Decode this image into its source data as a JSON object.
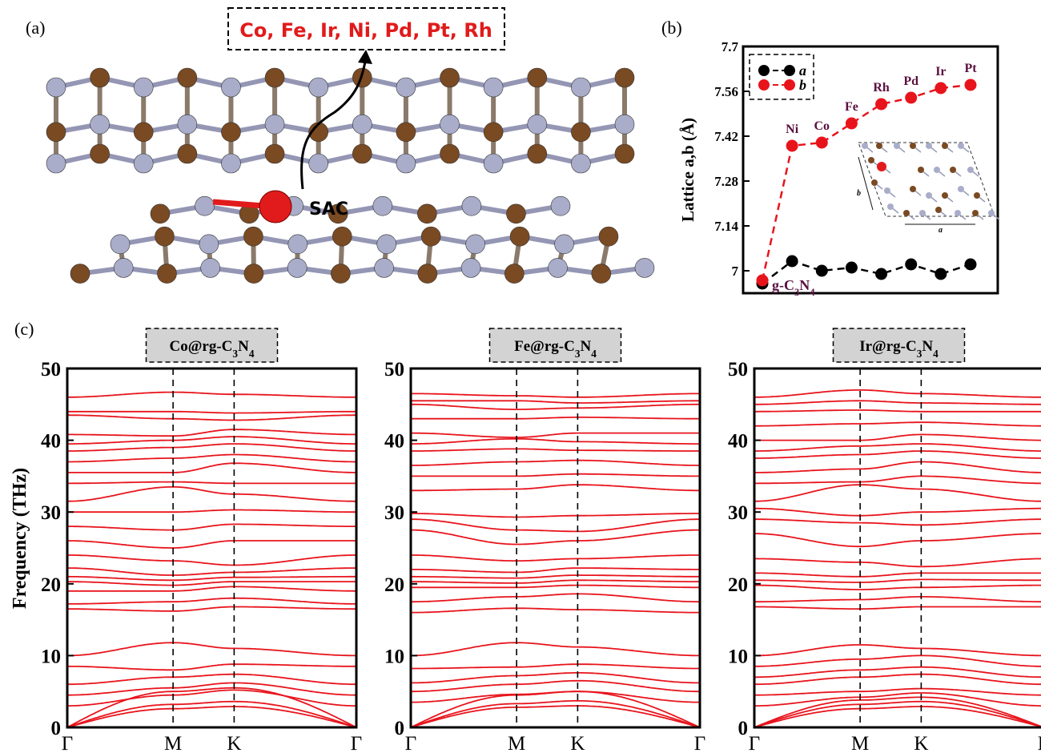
{
  "panels": {
    "a": {
      "label": "(a)",
      "elements_box": "Co, Fe, Ir, Ni, Pd, Pt, Rh",
      "sac_label": "SAC"
    },
    "b": {
      "label": "(b)"
    },
    "c": {
      "label": "(c)"
    }
  },
  "colors": {
    "carbon": "#7a4a22",
    "nitrogen": "#a9adca",
    "metal": "#e11b1b",
    "phonon_line": "#e8141c",
    "series_a": "#000000",
    "series_b": "#e8141c",
    "annotation_text": "#5a1040",
    "title_box_fill": "#d3d3d3"
  },
  "chart_data": [
    {
      "type": "line",
      "panel": "b",
      "ylabel": "Lattice  a,b (Å)",
      "ylim": [
        6.93,
        7.7
      ],
      "yticks": [
        7,
        7.14,
        7.28,
        7.42,
        7.56,
        7.7
      ],
      "x": [
        0,
        1,
        2,
        3,
        4,
        5,
        6,
        7
      ],
      "point_labels": [
        "g-C3N4",
        "Ni",
        "Co",
        "Fe",
        "Rh",
        "Pd",
        "Ir",
        "Pt"
      ],
      "series": [
        {
          "name": "a",
          "values": [
            6.96,
            7.03,
            7.0,
            7.01,
            6.99,
            7.02,
            6.99,
            7.02
          ]
        },
        {
          "name": "b",
          "values": [
            6.97,
            7.39,
            7.4,
            7.46,
            7.52,
            7.54,
            7.57,
            7.58
          ]
        }
      ],
      "legend_placement": "top-left",
      "inset_axis_labels": {
        "a": "a",
        "b": "b"
      }
    },
    {
      "type": "line",
      "panel": "c",
      "title": "Co@rg-C3N4",
      "ylabel": "Frequency (THz)",
      "ylim": [
        0,
        50
      ],
      "yticks": [
        0,
        10,
        20,
        30,
        40,
        50
      ],
      "kpath_labels": [
        "Γ",
        "M",
        "K",
        "Γ"
      ],
      "kpath_positions": [
        0,
        1,
        1.577,
        2.732
      ],
      "bands_gamma": [
        0.0,
        0.0,
        0.0,
        3.0,
        4.5,
        6.0,
        8.5,
        10.0,
        16.5,
        17.2,
        19.0,
        20.3,
        21.0,
        22.2,
        24.0,
        26.0,
        28.0,
        30.0,
        31.5,
        34.0,
        35.5,
        37.0,
        38.5,
        39.5,
        40.8,
        43.5,
        44.0,
        46.0
      ],
      "bands_M": [
        5.0,
        2.6,
        3.2,
        4.5,
        5.5,
        7.0,
        8.0,
        11.8,
        16.2,
        17.5,
        19.0,
        19.8,
        20.5,
        21.2,
        23.2,
        25.0,
        27.5,
        30.0,
        33.5,
        34.2,
        35.5,
        37.5,
        39.0,
        40.0,
        40.6,
        43.0,
        44.0,
        46.7
      ],
      "bands_K": [
        5.5,
        2.9,
        3.6,
        5.2,
        6.2,
        7.4,
        8.8,
        11.0,
        16.8,
        18.0,
        19.6,
        20.3,
        20.9,
        21.6,
        22.6,
        26.0,
        28.3,
        30.3,
        32.5,
        34.0,
        36.8,
        38.0,
        39.5,
        40.5,
        41.5,
        42.8,
        43.8,
        46.4
      ]
    },
    {
      "type": "line",
      "panel": "c",
      "title": "Fe@rg-C3N4",
      "ylim": [
        0,
        50
      ],
      "yticks": [
        0,
        10,
        20,
        30,
        40,
        50
      ],
      "kpath_labels": [
        "Γ",
        "M",
        "K",
        "Γ"
      ],
      "kpath_positions": [
        0,
        1,
        1.577,
        2.732
      ],
      "bands_gamma": [
        0.0,
        0.0,
        0.0,
        3.5,
        5.0,
        6.2,
        8.2,
        10.0,
        16.0,
        17.5,
        19.5,
        20.3,
        21.0,
        22.0,
        24.0,
        27.5,
        29.0,
        29.8,
        33.0,
        35.0,
        36.5,
        38.5,
        39.5,
        41.0,
        43.0,
        45.0,
        45.5,
        46.5
      ],
      "bands_M": [
        4.5,
        2.8,
        3.3,
        4.6,
        6.0,
        7.2,
        8.4,
        11.8,
        16.6,
        18.2,
        19.5,
        20.1,
        20.8,
        21.6,
        23.2,
        25.5,
        27.5,
        29.3,
        33.2,
        35.0,
        37.0,
        38.8,
        40.2,
        40.4,
        43.0,
        44.3,
        45.5,
        46.2
      ],
      "bands_K": [
        5.0,
        3.0,
        3.7,
        5.0,
        6.5,
        7.6,
        8.8,
        11.2,
        16.4,
        18.6,
        19.8,
        20.5,
        21.2,
        22.2,
        23.5,
        26.0,
        27.3,
        29.5,
        33.8,
        35.3,
        37.2,
        38.6,
        39.8,
        41.0,
        43.2,
        44.5,
        45.2,
        46.0
      ]
    },
    {
      "type": "line",
      "panel": "c",
      "title": "Ir@rg-C3N4",
      "ylim": [
        0,
        50
      ],
      "yticks": [
        0,
        10,
        20,
        30,
        40,
        50
      ],
      "kpath_labels": [
        "Γ",
        "M",
        "K",
        "Γ"
      ],
      "kpath_positions": [
        0,
        1,
        1.577,
        2.732
      ],
      "bands_gamma": [
        0.0,
        0.0,
        0.0,
        3.0,
        4.5,
        6.0,
        7.0,
        8.5,
        10.0,
        16.8,
        17.5,
        19.8,
        20.5,
        21.5,
        23.5,
        27.0,
        29.0,
        30.5,
        31.5,
        34.0,
        35.5,
        37.5,
        38.5,
        40.0,
        42.0,
        44.0,
        45.0,
        46.0
      ],
      "bands_M": [
        3.8,
        2.6,
        3.2,
        4.2,
        5.0,
        7.0,
        8.0,
        9.5,
        11.5,
        16.5,
        17.8,
        19.2,
        20.2,
        21.0,
        23.0,
        25.2,
        28.5,
        29.5,
        33.8,
        34.2,
        36.0,
        38.0,
        39.2,
        40.0,
        42.3,
        44.2,
        45.5,
        47.0
      ],
      "bands_K": [
        4.2,
        2.9,
        3.6,
        4.8,
        5.4,
        7.4,
        8.4,
        10.0,
        11.0,
        16.8,
        18.2,
        19.5,
        20.6,
        21.5,
        22.4,
        26.0,
        28.2,
        30.0,
        33.2,
        35.0,
        37.0,
        38.5,
        39.5,
        40.8,
        42.5,
        44.0,
        45.2,
        46.5
      ]
    }
  ]
}
